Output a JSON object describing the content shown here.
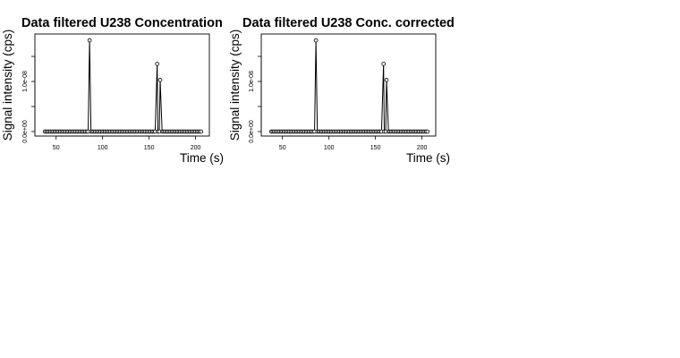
{
  "chart_data": [
    {
      "type": "line",
      "title": "Data filtered U238 Concentration",
      "xlabel": "Time (s)",
      "ylabel": "Signal intensity (cps)",
      "xlim": [
        32,
        210
      ],
      "ylim": [
        0,
        1.9e-08
      ],
      "xticks": [
        {
          "value": 50,
          "label": "50"
        },
        {
          "value": 100,
          "label": "100"
        },
        {
          "value": 150,
          "label": "150"
        },
        {
          "value": 200,
          "label": "200"
        }
      ],
      "yticks": [
        {
          "value": 0,
          "label": "0.0e+00"
        },
        {
          "value": 1e-08,
          "label": "1.0e-08"
        }
      ],
      "grid": false,
      "baseline": {
        "start": 38,
        "end": 206,
        "step": 1.5,
        "value": 0
      },
      "peaks": [
        {
          "x": 86.0,
          "y": 1.82e-08
        },
        {
          "x": 158.7,
          "y": 1.35e-08
        },
        {
          "x": 161.9,
          "y": 1.03e-08
        }
      ]
    },
    {
      "type": "line",
      "title": "Data filtered U238 Conc. corrected",
      "xlabel": "Time (s)",
      "ylabel": "Signal intensity (cps)",
      "xlim": [
        32,
        210
      ],
      "ylim": [
        0,
        1.9e-08
      ],
      "xticks": [
        {
          "value": 50,
          "label": "50"
        },
        {
          "value": 100,
          "label": "100"
        },
        {
          "value": 150,
          "label": "150"
        },
        {
          "value": 200,
          "label": "200"
        }
      ],
      "yticks": [
        {
          "value": 0,
          "label": "0.0e+00"
        },
        {
          "value": 1e-08,
          "label": "1.0e-08"
        }
      ],
      "grid": false,
      "baseline": {
        "start": 38,
        "end": 206,
        "step": 1.5,
        "value": 0
      },
      "peaks": [
        {
          "x": 86.0,
          "y": 1.82e-08
        },
        {
          "x": 158.7,
          "y": 1.35e-08
        },
        {
          "x": 161.9,
          "y": 1.03e-08
        }
      ]
    }
  ]
}
